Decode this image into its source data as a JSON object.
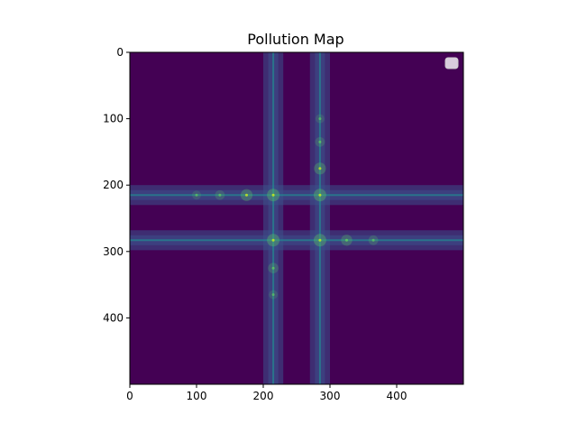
{
  "chart_data": {
    "type": "heatmap",
    "title": "Pollution Map",
    "xlabel": "",
    "ylabel": "",
    "xlim": [
      0,
      500
    ],
    "ylim": [
      500,
      0
    ],
    "y_axis_inverted": true,
    "x_ticks": [
      "0",
      "100",
      "200",
      "300",
      "400"
    ],
    "y_ticks": [
      "0",
      "100",
      "200",
      "300",
      "400"
    ],
    "colormap": "viridis",
    "background_value_color": "#440154",
    "roads": {
      "vertical_x": [
        215,
        285
      ],
      "horizontal_y": [
        215,
        283
      ],
      "band_halfwidth": 15
    },
    "hotspots": [
      {
        "x": 215,
        "y": 215,
        "level": 1.0
      },
      {
        "x": 285,
        "y": 215,
        "level": 1.0
      },
      {
        "x": 215,
        "y": 283,
        "level": 1.0
      },
      {
        "x": 285,
        "y": 283,
        "level": 1.0
      },
      {
        "x": 175,
        "y": 215,
        "level": 0.9
      },
      {
        "x": 285,
        "y": 175,
        "level": 0.9
      },
      {
        "x": 325,
        "y": 283,
        "level": 0.8
      },
      {
        "x": 215,
        "y": 325,
        "level": 0.7
      },
      {
        "x": 135,
        "y": 215,
        "level": 0.6
      },
      {
        "x": 285,
        "y": 135,
        "level": 0.6
      },
      {
        "x": 365,
        "y": 283,
        "level": 0.6
      },
      {
        "x": 215,
        "y": 365,
        "level": 0.5
      },
      {
        "x": 285,
        "y": 100,
        "level": 0.5
      },
      {
        "x": 100,
        "y": 215,
        "level": 0.5
      }
    ],
    "legend": {
      "placement": "top-right",
      "entries": []
    },
    "grid": false
  },
  "colors": {
    "low": "#440154",
    "band": "#3b528b",
    "road": "#26828e",
    "high": "#5ec962",
    "peak": "#b5de2b"
  }
}
